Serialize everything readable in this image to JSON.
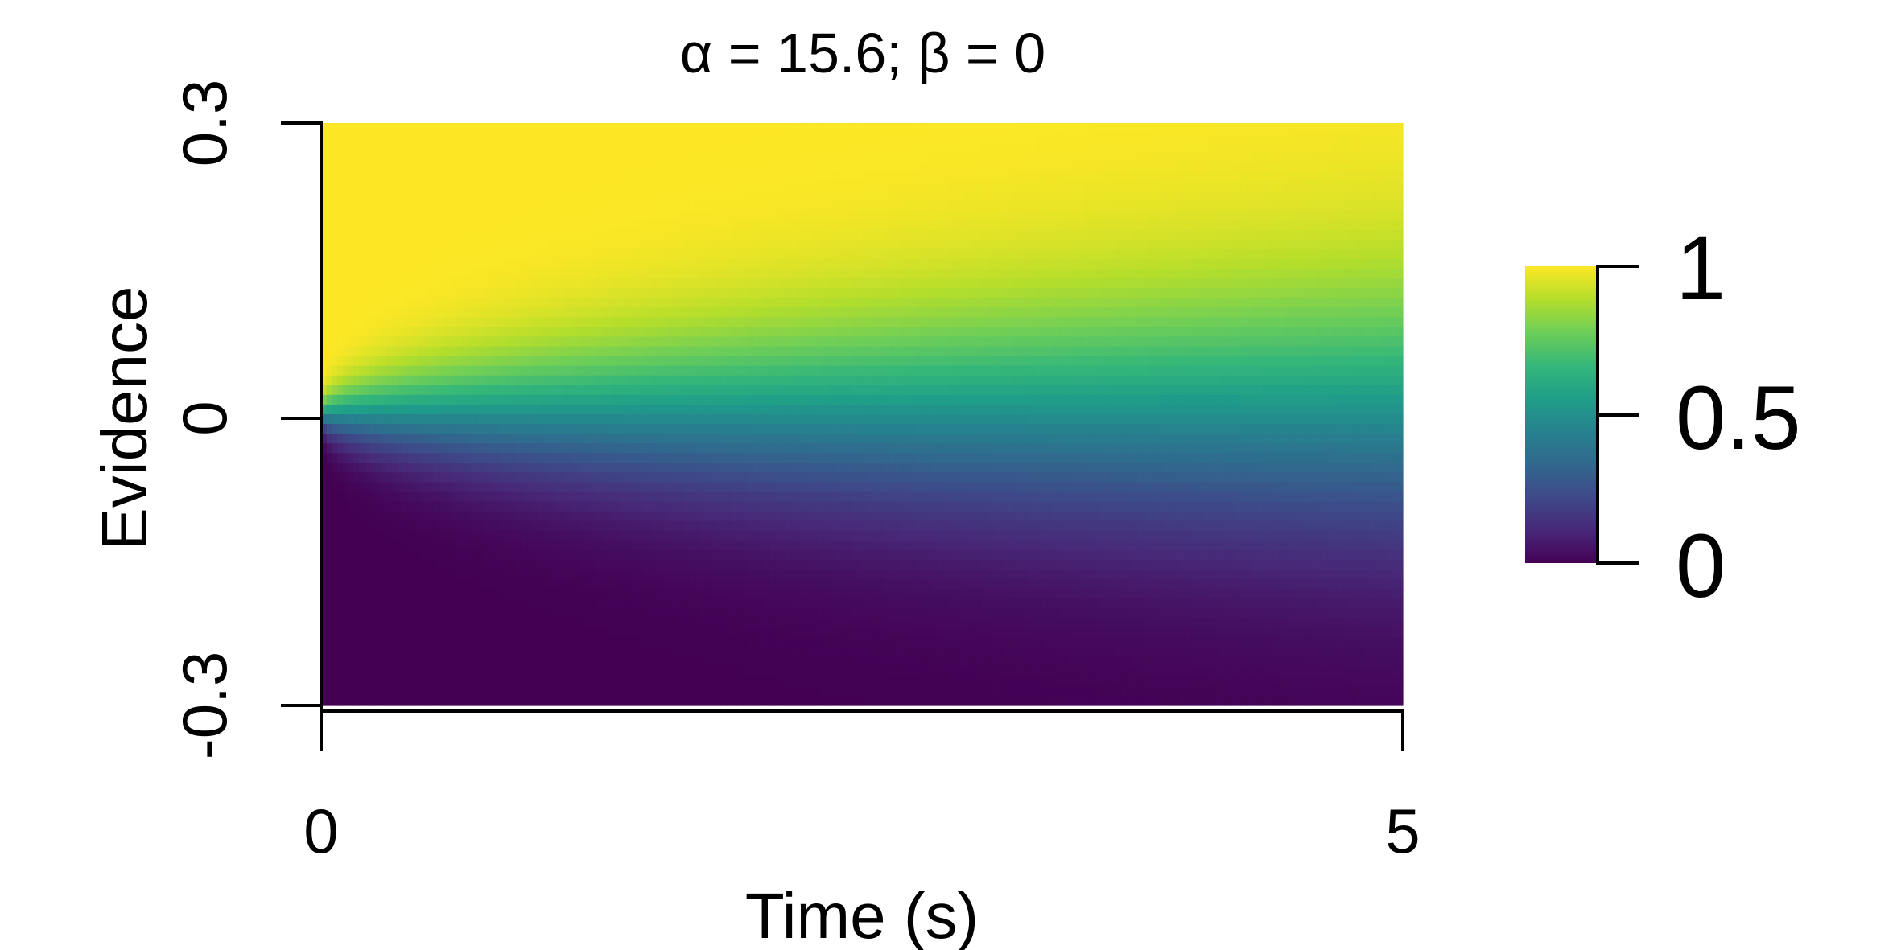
{
  "chart_data": {
    "type": "heatmap",
    "title": "α = 15.6; β = 0",
    "xlabel": "Time (s)",
    "ylabel": "Evidence",
    "xlim": [
      0,
      5
    ],
    "ylim": [
      -0.3,
      0.3
    ],
    "x_ticks": [
      "0",
      "5"
    ],
    "y_ticks": [
      "-0.3",
      "0",
      "0.3"
    ],
    "colorbar": {
      "range": [
        0,
        1
      ],
      "ticks": [
        "0",
        "0.5",
        "1"
      ],
      "colormap": "viridis"
    },
    "alpha": 15.6,
    "beta": 0,
    "colors": {
      "viridis": [
        "#440154",
        "#482878",
        "#3e4989",
        "#31688e",
        "#26828e",
        "#1f9e89",
        "#35b779",
        "#6ece58",
        "#b5de2b",
        "#fde725"
      ]
    }
  }
}
